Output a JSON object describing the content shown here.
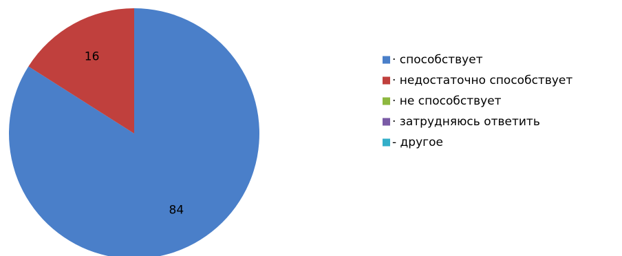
{
  "chart_data": {
    "type": "pie",
    "title": "",
    "legend_position": "right",
    "slices": [
      {
        "label": "· способствует",
        "value": 84,
        "color": "#4A7FC9",
        "data_label": "84"
      },
      {
        "label": "· недостаточно способствует",
        "value": 16,
        "color": "#C0403D",
        "data_label": "16"
      },
      {
        "label": "· не способствует",
        "value": 0,
        "color": "#8DB83F",
        "data_label": ""
      },
      {
        "label": "·  затрудняюсь ответить",
        "value": 0,
        "color": "#7A5BA6",
        "data_label": ""
      },
      {
        "label": "- другое",
        "value": 0,
        "color": "#33AFC9",
        "data_label": ""
      }
    ]
  }
}
